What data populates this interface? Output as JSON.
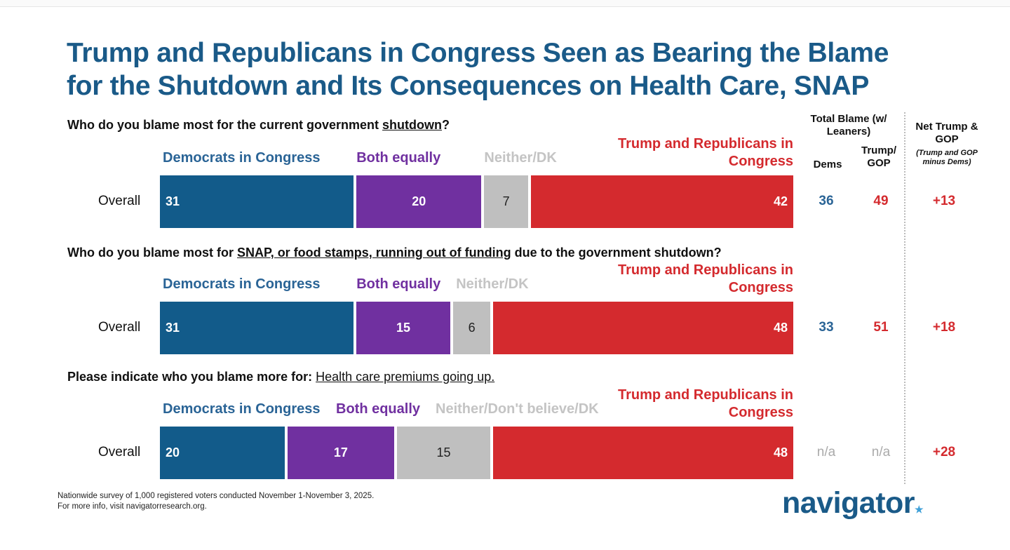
{
  "title_line1": "Trump and Republicans in Congress Seen as Bearing the Blame",
  "title_line2": "for the Shutdown and Its Consequences on Health Care, SNAP",
  "headers": {
    "total_blame": "Total Blame (w/ Leaners)",
    "dems": "Dems",
    "trump_gop": "Trump/ GOP",
    "net": "Net Trump & GOP",
    "net_sub": "(Trump and GOP minus Dems)"
  },
  "colors": {
    "dems": "#125b8a",
    "both": "#7030a0",
    "neither": "#bfbfbf",
    "trump": "#d42a2e",
    "dems_text": "#2a6496",
    "neither_text": "#c4c4c4"
  },
  "chart_data": {
    "type": "bar",
    "stacked": true,
    "orientation": "horizontal",
    "xlim": [
      0,
      100
    ],
    "questions": [
      {
        "pre": "Who do you blame most for the current government ",
        "ul": "shutdown",
        "post": "?",
        "row_label": "Overall",
        "categories": [
          "Democrats in Congress",
          "Both equally",
          "Neither/DK",
          "Trump and Republicans in Congress"
        ],
        "values": [
          31,
          20,
          7,
          42
        ],
        "total_dems": "36",
        "total_trump": "49",
        "net": "+13"
      },
      {
        "pre": "Who do you blame most for ",
        "ul": "SNAP, or food stamps, running out of funding",
        "post": " due to the government shutdown?",
        "row_label": "Overall",
        "categories": [
          "Democrats in Congress",
          "Both equally",
          "Neither/DK",
          "Trump and Republicans in Congress"
        ],
        "values": [
          31,
          15,
          6,
          48
        ],
        "total_dems": "33",
        "total_trump": "51",
        "net": "+18"
      },
      {
        "pre": "Please indicate who you blame more for: ",
        "ul": "Health care premiums going up.",
        "post": "",
        "row_label": "Overall",
        "categories": [
          "Democrats in Congress",
          "Both equally",
          "Neither/Don't believe/DK",
          "Trump and Republicans in Congress"
        ],
        "values": [
          20,
          17,
          15,
          48
        ],
        "total_dems": "n/a",
        "total_trump": "n/a",
        "net": "+28"
      }
    ]
  },
  "footnote_line1": "Nationwide survey of 1,000 registered voters conducted November 1-November 3, 2025.",
  "footnote_line2": "For more info, visit navigatorresearch.org.",
  "logo": "navigator"
}
